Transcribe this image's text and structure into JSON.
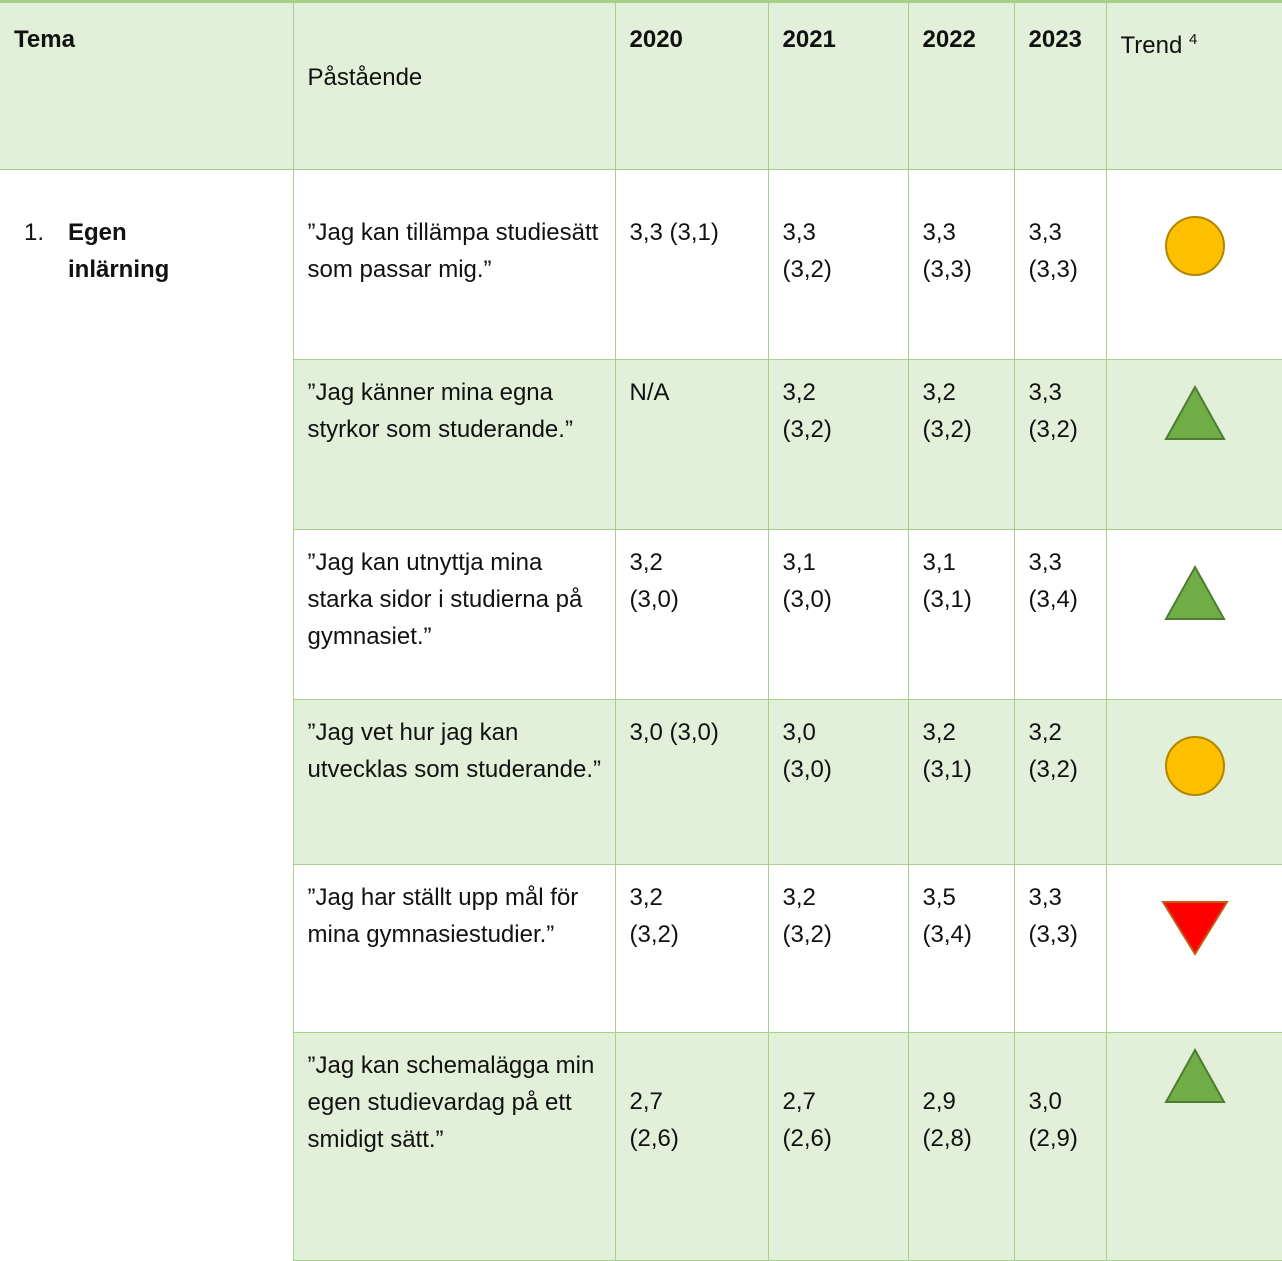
{
  "header": {
    "theme": "Tema",
    "statement": "Påstående",
    "years": [
      "2020",
      "2021",
      "2022",
      "2023"
    ],
    "trend": "Trend",
    "trend_note": "4"
  },
  "theme": {
    "number": "1.",
    "name": "Egen\ninlärning"
  },
  "rows": [
    {
      "statement": "”Jag kan tillämpa studiesätt som passar mig.”",
      "values": [
        "3,3 (3,1)",
        "3,3\n(3,2)",
        "3,3\n(3,3)",
        "3,3\n(3,3)"
      ]
    },
    {
      "statement": "”Jag känner mina egna styrkor som studerande.”",
      "values": [
        "N/A",
        "3,2\n(3,2)",
        "3,2\n(3,2)",
        "3,3\n(3,2)"
      ]
    },
    {
      "statement": "”Jag kan utnyttja mina starka sidor i studierna på gymnasiet.”",
      "values": [
        "3,2\n (3,0)",
        "3,1\n(3,0)",
        "3,1\n(3,1)",
        "3,3\n(3,4)"
      ]
    },
    {
      "statement": "”Jag vet hur jag kan utvecklas som studerande.”",
      "values": [
        "3,0 (3,0)",
        "3,0\n(3,0)",
        "3,2\n(3,1)",
        "3,2\n(3,2)"
      ]
    },
    {
      "statement": "”Jag har ställt upp mål för mina gymnasiestudier.”",
      "values": [
        "3,2\n (3,2)",
        "3,2\n(3,2)",
        "3,5\n(3,4)",
        "3,3\n(3,3)"
      ]
    },
    {
      "statement": "”Jag kan schemalägga min egen studievardag på ett smidigt sätt.”",
      "values": [
        "2,7\n (2,6)",
        "2,7\n(2,6)",
        "2,9\n(2,8)",
        "3,0\n(2,9)"
      ]
    }
  ]
}
